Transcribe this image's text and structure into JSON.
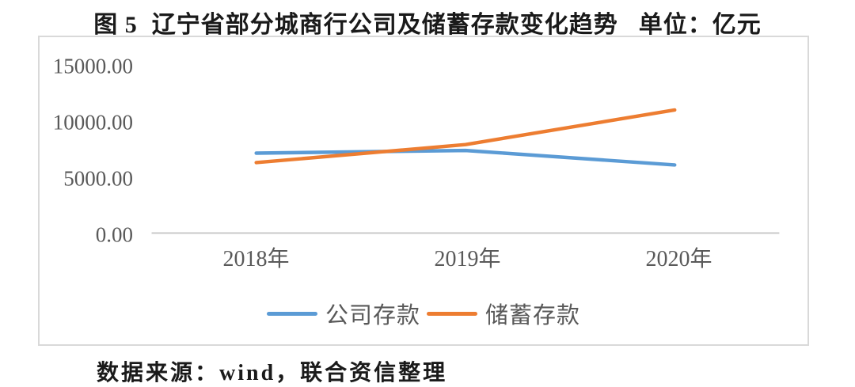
{
  "header": {
    "figure_label": "图 5",
    "title": "辽宁省部分城商行公司及储蓄存款变化趋势",
    "unit": "单位：亿元"
  },
  "footer": {
    "source": "数据来源：wind，联合资信整理"
  },
  "chart_data": {
    "type": "line",
    "title": "图 5 辽宁省部分城商行公司及储蓄存款变化趋势",
    "unit": "亿元",
    "categories": [
      "2018年",
      "2019年",
      "2020年"
    ],
    "series": [
      {
        "name": "公司存款",
        "color": "#5B9BD5",
        "values": [
          7180,
          7420,
          6120
        ]
      },
      {
        "name": "储蓄存款",
        "color": "#ED7D31",
        "values": [
          6330,
          7950,
          11060
        ]
      }
    ],
    "xlabel": "",
    "ylabel": "",
    "ylim": [
      0,
      15000
    ],
    "yticks": [
      "15000.00",
      "10000.00",
      "5000.00",
      "0.00"
    ],
    "ytick_values": [
      15000,
      10000,
      5000,
      0
    ],
    "grid": false,
    "legend_position": "bottom",
    "axis_color": "#C9C9C9",
    "frame_color": "#D9D9D9",
    "tick_label_color": "#595959"
  }
}
